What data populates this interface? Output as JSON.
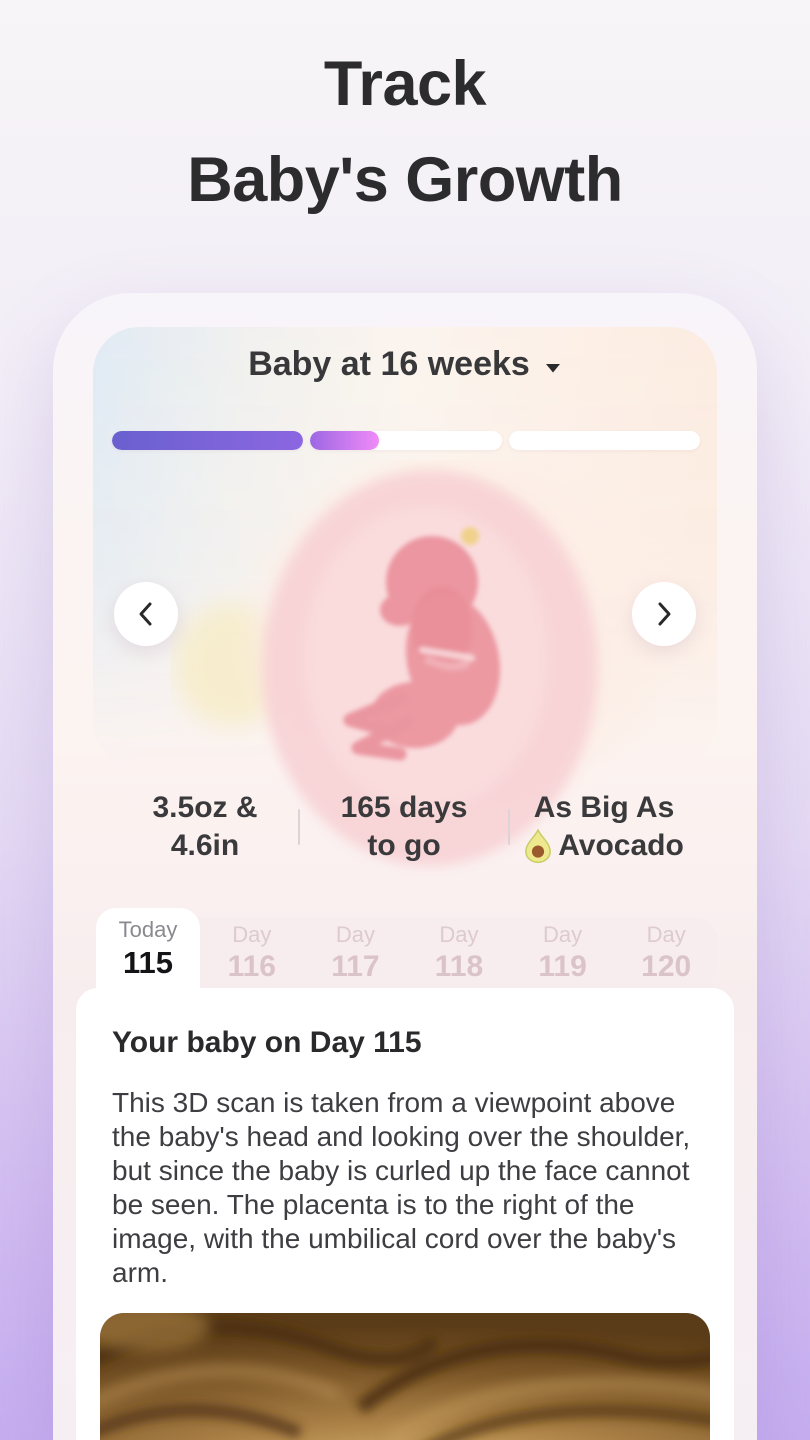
{
  "title": {
    "line1": "Track",
    "line2": "Baby's Growth"
  },
  "phone": {
    "header": {
      "title": "Baby at 16 weeks",
      "dropdown_icon": "chevron-down-icon"
    },
    "progress": {
      "segments": [
        {
          "fill_pct": 100
        },
        {
          "fill_pct": 36
        },
        {
          "fill_pct": 0
        }
      ],
      "gradient_start": "#6a60cf",
      "gradient_end": "#f08bf8"
    },
    "carousel": {
      "prev_icon": "chevron-left-icon",
      "next_icon": "chevron-right-icon",
      "illustration": "fetus-in-womb-illustration"
    },
    "stats": [
      {
        "line1": "3.5oz &",
        "line2": "4.6in"
      },
      {
        "line1": "165 days",
        "line2": "to go"
      },
      {
        "line1": "As Big As",
        "line2": "Avocado",
        "icon": "avocado-icon"
      }
    ],
    "day_tabs": [
      {
        "label": "Today",
        "day": "115",
        "active": true
      },
      {
        "label": "Day",
        "day": "116",
        "active": false
      },
      {
        "label": "Day",
        "day": "117",
        "active": false
      },
      {
        "label": "Day",
        "day": "118",
        "active": false
      },
      {
        "label": "Day",
        "day": "119",
        "active": false
      },
      {
        "label": "Day",
        "day": "120",
        "active": false
      }
    ],
    "content": {
      "heading": "Your baby on Day 115",
      "body": "This 3D scan is taken from a viewpoint above the baby's head and looking over the shoulder, but since the baby is curled up the face cannot be seen. The placenta is to the right of the image, with the umbilical cord over the baby's arm.",
      "image": "ultrasound-3d-scan"
    }
  },
  "colors": {
    "page_bg_top": "#f7f5f7",
    "page_bg_bottom": "#c6aef0",
    "title_text": "#2c2c2f",
    "tab_strip_bg": "#f7ecee",
    "inactive_tab_text": "#dac4c9",
    "panel_bg": "#ffffff"
  }
}
